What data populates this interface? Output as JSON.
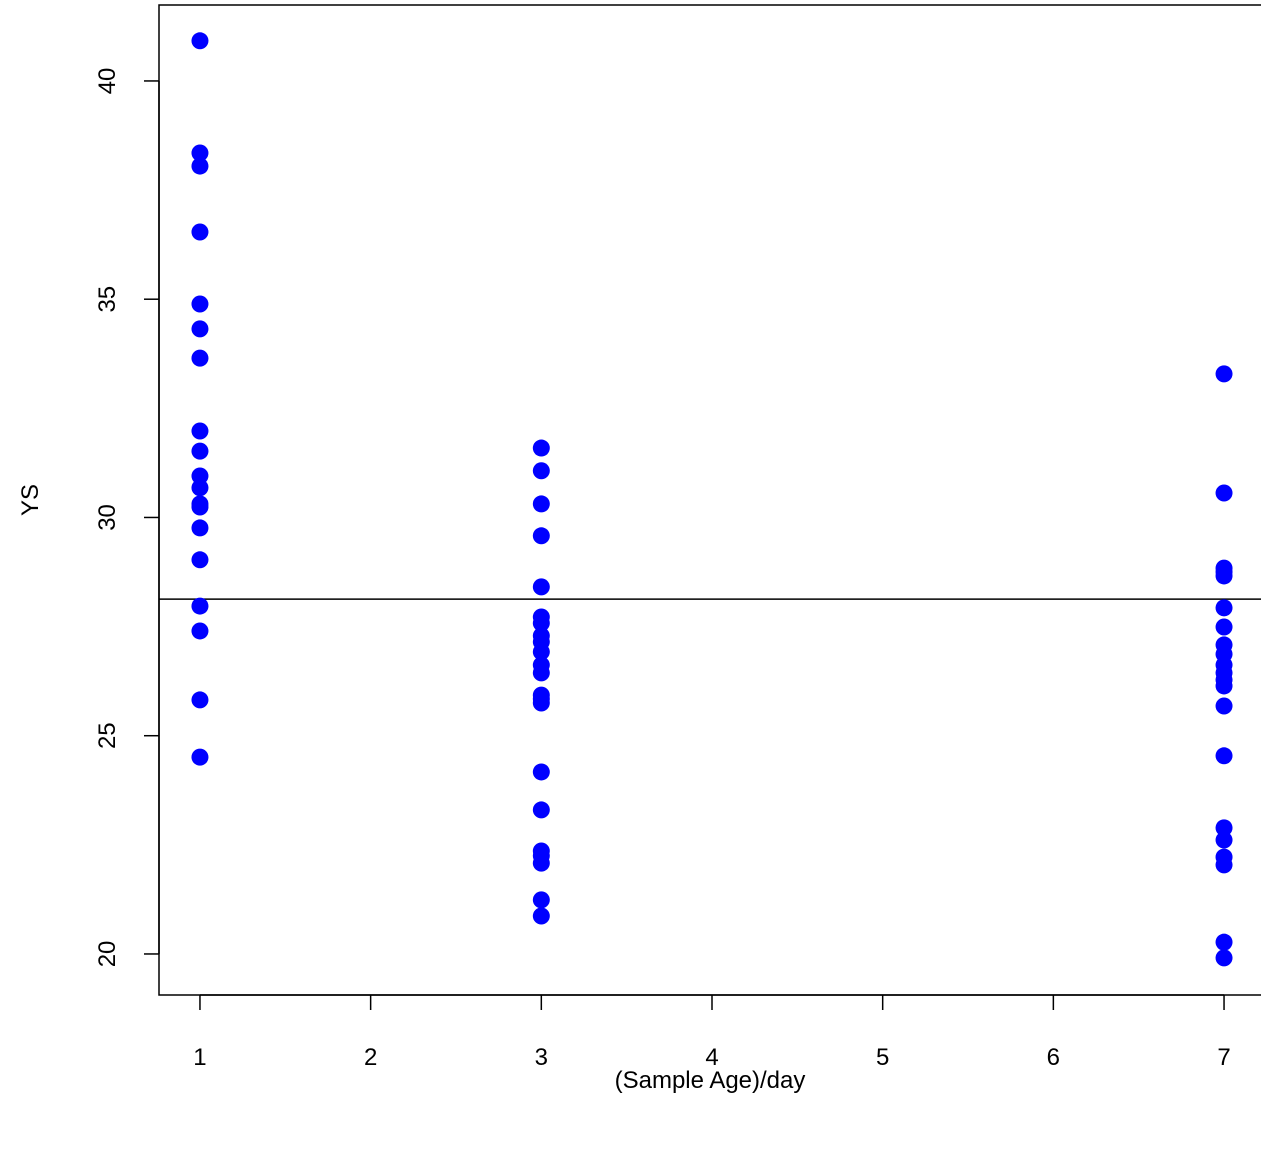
{
  "chart_data": {
    "type": "scatter",
    "xlabel": "(Sample Age)/day",
    "ylabel": "YS",
    "x": [
      1,
      1,
      1,
      1,
      1,
      1,
      1,
      1,
      1,
      1,
      1,
      1,
      1,
      1,
      1,
      1,
      1,
      1,
      1,
      3,
      3,
      3,
      3,
      3,
      3,
      3,
      3,
      3,
      3,
      3,
      3,
      3,
      3,
      3,
      3,
      3,
      3,
      3,
      3,
      3,
      3,
      7,
      7,
      7,
      7,
      7,
      7,
      7,
      7,
      7,
      7,
      7,
      7,
      7,
      7,
      7,
      7,
      7,
      7,
      7,
      7,
      7
    ],
    "series": [
      {
        "color": "#0000ff",
        "values": [
          40.92,
          38.35,
          38.05,
          36.54,
          34.89,
          34.32,
          33.65,
          31.98,
          31.52,
          30.95,
          30.68,
          30.31,
          30.24,
          29.76,
          29.03,
          27.97,
          27.4,
          25.82,
          24.51,
          31.59,
          31.07,
          30.31,
          29.58,
          28.41,
          27.72,
          27.58,
          27.29,
          27.15,
          26.92,
          26.62,
          26.44,
          25.93,
          25.84,
          25.75,
          24.17,
          23.3,
          22.36,
          22.25,
          22.08,
          21.24,
          20.87,
          33.29,
          30.56,
          28.84,
          28.75,
          28.66,
          27.93,
          27.49,
          27.08,
          26.87,
          26.62,
          26.44,
          26.28,
          26.14,
          25.68,
          24.54,
          22.89,
          22.61,
          22.22,
          22.04,
          20.27,
          19.91
        ]
      }
    ],
    "hline": 28.13,
    "xlim": [
      0.76,
      7.24
    ],
    "xticks": [
      1,
      2,
      3,
      4,
      5,
      6,
      7
    ],
    "ylim": [
      19.06,
      41.74
    ],
    "yticks": [
      20,
      25,
      30,
      35,
      40
    ]
  }
}
